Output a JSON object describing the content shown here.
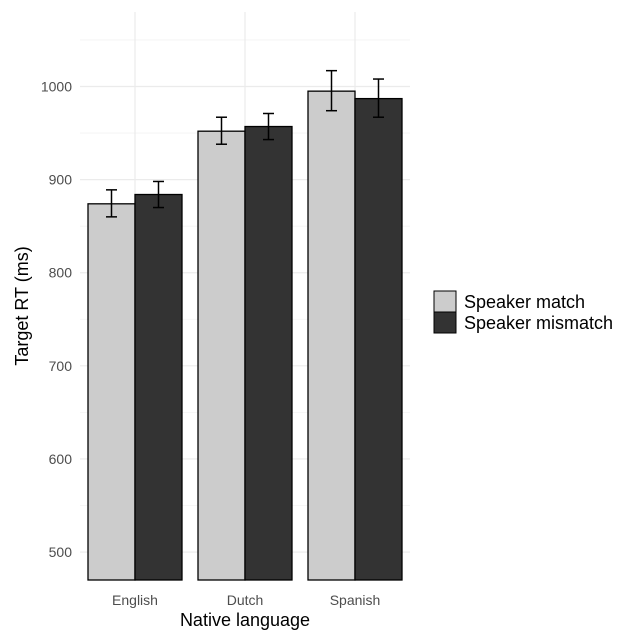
{
  "chart_data": {
    "type": "bar",
    "title": "",
    "xlabel": "Native language",
    "ylabel": "Target RT (ms)",
    "categories": [
      "English",
      "Dutch",
      "Spanish"
    ],
    "ylim": [
      470,
      1080
    ],
    "yticks": [
      500,
      600,
      700,
      800,
      900,
      1000
    ],
    "ytick_labels": [
      "500",
      "600",
      "700",
      "800",
      "900",
      "1000"
    ],
    "grid": true,
    "legend_position": "right",
    "series": [
      {
        "name": "Speaker match",
        "color": "#cccccc",
        "values": [
          874,
          952,
          995
        ],
        "error_low": [
          860,
          938,
          974
        ],
        "error_high": [
          889,
          967,
          1017
        ]
      },
      {
        "name": "Speaker mismatch",
        "color": "#333333",
        "values": [
          884,
          957,
          987
        ],
        "error_low": [
          870,
          943,
          967
        ],
        "error_high": [
          898,
          971,
          1008
        ]
      }
    ]
  }
}
